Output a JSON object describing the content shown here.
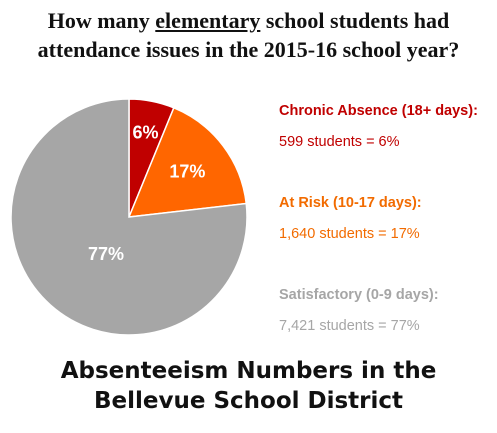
{
  "title": {
    "line1_pre": "How many ",
    "line1_underlined": "elementary",
    "line1_post": " school students had",
    "line2": "attendance issues in the 2015-16 school year?"
  },
  "chart_data": {
    "type": "pie",
    "slices": [
      {
        "label": "Chronic Absence (18+ days):",
        "detail": "599 students = 6%",
        "students": 599,
        "percent": 6,
        "percent_label": "6%",
        "color": "#c00000"
      },
      {
        "label": "At Risk (10-17 days):",
        "detail": "1,640 students = 17%",
        "students": 1640,
        "percent": 17,
        "percent_label": "17%",
        "color": "#ff6600"
      },
      {
        "label": "Satisfactory (0-9 days):",
        "detail": "7,421 students = 77%",
        "students": 7421,
        "percent": 77,
        "percent_label": "77%",
        "color": "#a6a6a6"
      }
    ],
    "start_angle_deg": 0,
    "direction": "clockwise",
    "legend_position": "right"
  },
  "bottom_title": {
    "line1": "Absenteeism Numbers in the",
    "line2": "Bellevue School District"
  }
}
